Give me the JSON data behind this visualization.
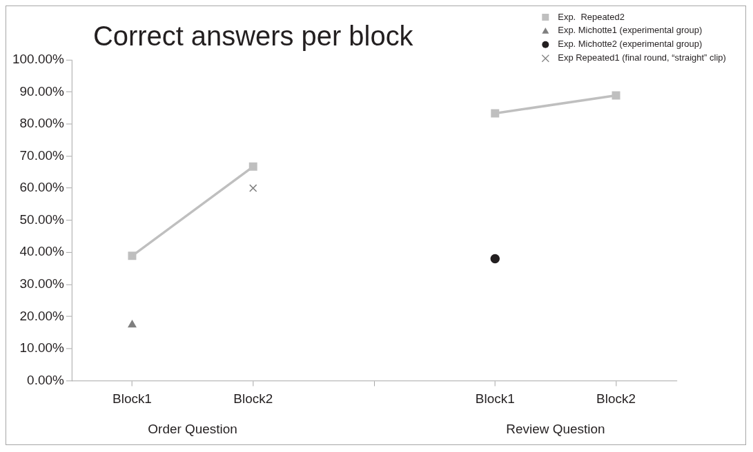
{
  "chart_data": {
    "type": "line",
    "title": "Correct answers per block",
    "categories": [
      "Block1",
      "Block2",
      null,
      "Block1",
      "Block2"
    ],
    "annotations": [
      "Order Question",
      "Review Question"
    ],
    "series": [
      {
        "name": "Exp.  Repeated2",
        "type": "line",
        "marker": "square",
        "color": "#bfbfbf",
        "values": [
          38.9,
          66.7,
          null,
          83.3,
          88.9
        ]
      },
      {
        "name": "Exp. Michotte1 (experimental group)",
        "type": "scatter",
        "marker": "triangle",
        "color": "#7f7f7f",
        "values": [
          17.4,
          null,
          null,
          null,
          null
        ]
      },
      {
        "name": "Exp. Michotte2 (experimental group)",
        "type": "scatter",
        "marker": "circle",
        "color": "#231f20",
        "values": [
          null,
          null,
          null,
          38,
          null
        ]
      },
      {
        "name": "Exp Repeated1 (final round, “straight” clip)",
        "type": "scatter",
        "marker": "cross",
        "color": "#7f7f7f",
        "values": [
          null,
          60,
          null,
          null,
          null
        ]
      }
    ],
    "ylim": [
      0,
      100
    ],
    "yticks": [
      {
        "value": 0,
        "label": "0.00%"
      },
      {
        "value": 10,
        "label": "10.00%"
      },
      {
        "value": 20,
        "label": "20.00%"
      },
      {
        "value": 30,
        "label": "30.00%"
      },
      {
        "value": 40,
        "label": "40.00%"
      },
      {
        "value": 50,
        "label": "50.00%"
      },
      {
        "value": 60,
        "label": "60.00%"
      },
      {
        "value": 70,
        "label": "70.00%"
      },
      {
        "value": 80,
        "label": "80.00%"
      },
      {
        "value": 90,
        "label": "90.00%"
      },
      {
        "value": 100,
        "label": "100.00%"
      }
    ],
    "grid": false,
    "legend": "top right"
  }
}
